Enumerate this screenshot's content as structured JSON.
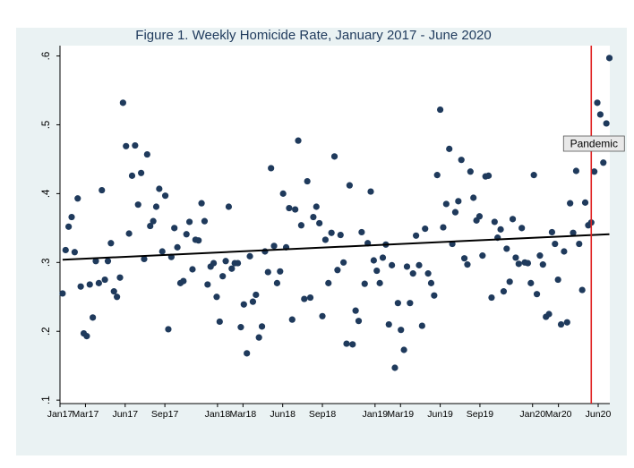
{
  "chart_data": {
    "type": "scatter",
    "title": "Figure 1. Weekly Homicide Rate, January 2017 - June 2020",
    "xlabel": "",
    "ylabel": "",
    "ylim": [
      0.1,
      0.6
    ],
    "yticks": [
      {
        "value": 0.1,
        "label": ".1"
      },
      {
        "value": 0.2,
        "label": ".2"
      },
      {
        "value": 0.3,
        "label": ".3"
      },
      {
        "value": 0.4,
        "label": ".4"
      },
      {
        "value": 0.5,
        "label": ".5"
      },
      {
        "value": 0.6,
        "label": ".6"
      }
    ],
    "xlim": [
      "2017-01-01",
      "2020-06-28"
    ],
    "xticks": [
      {
        "value": "2017-01",
        "label": "Jan17"
      },
      {
        "value": "2017-03",
        "label": "Mar17"
      },
      {
        "value": "2017-06",
        "label": "Jun17"
      },
      {
        "value": "2017-09",
        "label": "Sep17"
      },
      {
        "value": "2018-01",
        "label": "Jan18"
      },
      {
        "value": "2018-03",
        "label": "Mar18"
      },
      {
        "value": "2018-06",
        "label": "Jun18"
      },
      {
        "value": "2018-09",
        "label": "Sep18"
      },
      {
        "value": "2019-01",
        "label": "Jan19"
      },
      {
        "value": "2019-03",
        "label": "Mar19"
      },
      {
        "value": "2019-06",
        "label": "Jun19"
      },
      {
        "value": "2019-09",
        "label": "Sep19"
      },
      {
        "value": "2020-01",
        "label": "Jan20"
      },
      {
        "value": "2020-03",
        "label": "Mar20"
      },
      {
        "value": "2020-06",
        "label": "Jun20"
      }
    ],
    "series": [
      {
        "kind": "points",
        "marker_color": "#1f3a5c",
        "points": [
          {
            "x": "2017-01-07",
            "y": 0.255
          },
          {
            "x": "2017-01-14",
            "y": 0.318
          },
          {
            "x": "2017-01-21",
            "y": 0.352
          },
          {
            "x": "2017-01-28",
            "y": 0.366
          },
          {
            "x": "2017-02-04",
            "y": 0.315
          },
          {
            "x": "2017-02-11",
            "y": 0.393
          },
          {
            "x": "2017-02-18",
            "y": 0.265
          },
          {
            "x": "2017-02-25",
            "y": 0.197
          },
          {
            "x": "2017-03-04",
            "y": 0.193
          },
          {
            "x": "2017-03-11",
            "y": 0.268
          },
          {
            "x": "2017-03-18",
            "y": 0.22
          },
          {
            "x": "2017-03-25",
            "y": 0.302
          },
          {
            "x": "2017-04-01",
            "y": 0.27
          },
          {
            "x": "2017-04-08",
            "y": 0.405
          },
          {
            "x": "2017-04-15",
            "y": 0.275
          },
          {
            "x": "2017-04-22",
            "y": 0.302
          },
          {
            "x": "2017-04-29",
            "y": 0.328
          },
          {
            "x": "2017-05-06",
            "y": 0.258
          },
          {
            "x": "2017-05-13",
            "y": 0.25
          },
          {
            "x": "2017-05-20",
            "y": 0.278
          },
          {
            "x": "2017-05-27",
            "y": 0.532
          },
          {
            "x": "2017-06-03",
            "y": 0.469
          },
          {
            "x": "2017-06-10",
            "y": 0.342
          },
          {
            "x": "2017-06-17",
            "y": 0.426
          },
          {
            "x": "2017-06-24",
            "y": 0.47
          },
          {
            "x": "2017-07-01",
            "y": 0.384
          },
          {
            "x": "2017-07-08",
            "y": 0.43
          },
          {
            "x": "2017-07-15",
            "y": 0.305
          },
          {
            "x": "2017-07-22",
            "y": 0.457
          },
          {
            "x": "2017-07-29",
            "y": 0.353
          },
          {
            "x": "2017-08-05",
            "y": 0.36
          },
          {
            "x": "2017-08-12",
            "y": 0.381
          },
          {
            "x": "2017-08-19",
            "y": 0.407
          },
          {
            "x": "2017-08-26",
            "y": 0.316
          },
          {
            "x": "2017-09-02",
            "y": 0.397
          },
          {
            "x": "2017-09-09",
            "y": 0.203
          },
          {
            "x": "2017-09-16",
            "y": 0.308
          },
          {
            "x": "2017-09-23",
            "y": 0.35
          },
          {
            "x": "2017-09-30",
            "y": 0.322
          },
          {
            "x": "2017-10-07",
            "y": 0.27
          },
          {
            "x": "2017-10-14",
            "y": 0.273
          },
          {
            "x": "2017-10-21",
            "y": 0.341
          },
          {
            "x": "2017-10-28",
            "y": 0.359
          },
          {
            "x": "2017-11-04",
            "y": 0.29
          },
          {
            "x": "2017-11-11",
            "y": 0.333
          },
          {
            "x": "2017-11-18",
            "y": 0.332
          },
          {
            "x": "2017-11-25",
            "y": 0.386
          },
          {
            "x": "2017-12-02",
            "y": 0.36
          },
          {
            "x": "2017-12-09",
            "y": 0.268
          },
          {
            "x": "2017-12-16",
            "y": 0.294
          },
          {
            "x": "2017-12-23",
            "y": 0.299
          },
          {
            "x": "2017-12-30",
            "y": 0.25
          },
          {
            "x": "2018-01-06",
            "y": 0.214
          },
          {
            "x": "2018-01-13",
            "y": 0.28
          },
          {
            "x": "2018-01-20",
            "y": 0.302
          },
          {
            "x": "2018-01-27",
            "y": 0.381
          },
          {
            "x": "2018-02-03",
            "y": 0.291
          },
          {
            "x": "2018-02-10",
            "y": 0.299
          },
          {
            "x": "2018-02-17",
            "y": 0.299
          },
          {
            "x": "2018-02-24",
            "y": 0.206
          },
          {
            "x": "2018-03-03",
            "y": 0.239
          },
          {
            "x": "2018-03-10",
            "y": 0.168
          },
          {
            "x": "2018-03-17",
            "y": 0.309
          },
          {
            "x": "2018-03-24",
            "y": 0.243
          },
          {
            "x": "2018-03-31",
            "y": 0.253
          },
          {
            "x": "2018-04-07",
            "y": 0.191
          },
          {
            "x": "2018-04-14",
            "y": 0.207
          },
          {
            "x": "2018-04-21",
            "y": 0.316
          },
          {
            "x": "2018-04-28",
            "y": 0.286
          },
          {
            "x": "2018-05-05",
            "y": 0.437
          },
          {
            "x": "2018-05-12",
            "y": 0.324
          },
          {
            "x": "2018-05-19",
            "y": 0.27
          },
          {
            "x": "2018-05-26",
            "y": 0.287
          },
          {
            "x": "2018-06-02",
            "y": 0.4
          },
          {
            "x": "2018-06-09",
            "y": 0.322
          },
          {
            "x": "2018-06-16",
            "y": 0.379
          },
          {
            "x": "2018-06-23",
            "y": 0.217
          },
          {
            "x": "2018-06-30",
            "y": 0.377
          },
          {
            "x": "2018-07-07",
            "y": 0.477
          },
          {
            "x": "2018-07-14",
            "y": 0.354
          },
          {
            "x": "2018-07-21",
            "y": 0.247
          },
          {
            "x": "2018-07-28",
            "y": 0.418
          },
          {
            "x": "2018-08-04",
            "y": 0.249
          },
          {
            "x": "2018-08-11",
            "y": 0.366
          },
          {
            "x": "2018-08-18",
            "y": 0.381
          },
          {
            "x": "2018-08-25",
            "y": 0.357
          },
          {
            "x": "2018-09-01",
            "y": 0.222
          },
          {
            "x": "2018-09-08",
            "y": 0.333
          },
          {
            "x": "2018-09-15",
            "y": 0.27
          },
          {
            "x": "2018-09-22",
            "y": 0.343
          },
          {
            "x": "2018-09-29",
            "y": 0.454
          },
          {
            "x": "2018-10-06",
            "y": 0.289
          },
          {
            "x": "2018-10-13",
            "y": 0.34
          },
          {
            "x": "2018-10-20",
            "y": 0.3
          },
          {
            "x": "2018-10-27",
            "y": 0.182
          },
          {
            "x": "2018-11-03",
            "y": 0.412
          },
          {
            "x": "2018-11-10",
            "y": 0.181
          },
          {
            "x": "2018-11-17",
            "y": 0.23
          },
          {
            "x": "2018-11-24",
            "y": 0.215
          },
          {
            "x": "2018-12-01",
            "y": 0.344
          },
          {
            "x": "2018-12-08",
            "y": 0.269
          },
          {
            "x": "2018-12-15",
            "y": 0.328
          },
          {
            "x": "2018-12-22",
            "y": 0.403
          },
          {
            "x": "2018-12-29",
            "y": 0.303
          },
          {
            "x": "2019-01-05",
            "y": 0.288
          },
          {
            "x": "2019-01-12",
            "y": 0.27
          },
          {
            "x": "2019-01-19",
            "y": 0.307
          },
          {
            "x": "2019-01-26",
            "y": 0.326
          },
          {
            "x": "2019-02-02",
            "y": 0.21
          },
          {
            "x": "2019-02-09",
            "y": 0.296
          },
          {
            "x": "2019-02-16",
            "y": 0.147
          },
          {
            "x": "2019-02-23",
            "y": 0.241
          },
          {
            "x": "2019-03-02",
            "y": 0.202
          },
          {
            "x": "2019-03-09",
            "y": 0.173
          },
          {
            "x": "2019-03-16",
            "y": 0.294
          },
          {
            "x": "2019-03-23",
            "y": 0.241
          },
          {
            "x": "2019-03-30",
            "y": 0.284
          },
          {
            "x": "2019-04-06",
            "y": 0.339
          },
          {
            "x": "2019-04-13",
            "y": 0.296
          },
          {
            "x": "2019-04-20",
            "y": 0.208
          },
          {
            "x": "2019-04-27",
            "y": 0.349
          },
          {
            "x": "2019-05-04",
            "y": 0.284
          },
          {
            "x": "2019-05-11",
            "y": 0.27
          },
          {
            "x": "2019-05-18",
            "y": 0.252
          },
          {
            "x": "2019-05-25",
            "y": 0.427
          },
          {
            "x": "2019-06-01",
            "y": 0.522
          },
          {
            "x": "2019-06-08",
            "y": 0.351
          },
          {
            "x": "2019-06-15",
            "y": 0.385
          },
          {
            "x": "2019-06-22",
            "y": 0.465
          },
          {
            "x": "2019-06-29",
            "y": 0.327
          },
          {
            "x": "2019-07-06",
            "y": 0.373
          },
          {
            "x": "2019-07-13",
            "y": 0.389
          },
          {
            "x": "2019-07-20",
            "y": 0.449
          },
          {
            "x": "2019-07-27",
            "y": 0.306
          },
          {
            "x": "2019-08-03",
            "y": 0.297
          },
          {
            "x": "2019-08-10",
            "y": 0.432
          },
          {
            "x": "2019-08-17",
            "y": 0.394
          },
          {
            "x": "2019-08-24",
            "y": 0.361
          },
          {
            "x": "2019-08-31",
            "y": 0.367
          },
          {
            "x": "2019-09-07",
            "y": 0.31
          },
          {
            "x": "2019-09-14",
            "y": 0.425
          },
          {
            "x": "2019-09-21",
            "y": 0.426
          },
          {
            "x": "2019-09-28",
            "y": 0.249
          },
          {
            "x": "2019-10-05",
            "y": 0.359
          },
          {
            "x": "2019-10-12",
            "y": 0.336
          },
          {
            "x": "2019-10-19",
            "y": 0.348
          },
          {
            "x": "2019-10-26",
            "y": 0.258
          },
          {
            "x": "2019-11-02",
            "y": 0.32
          },
          {
            "x": "2019-11-09",
            "y": 0.272
          },
          {
            "x": "2019-11-16",
            "y": 0.363
          },
          {
            "x": "2019-11-23",
            "y": 0.307
          },
          {
            "x": "2019-11-30",
            "y": 0.298
          },
          {
            "x": "2019-12-07",
            "y": 0.35
          },
          {
            "x": "2019-12-14",
            "y": 0.3
          },
          {
            "x": "2019-12-21",
            "y": 0.299
          },
          {
            "x": "2019-12-28",
            "y": 0.27
          },
          {
            "x": "2020-01-04",
            "y": 0.427
          },
          {
            "x": "2020-01-11",
            "y": 0.254
          },
          {
            "x": "2020-01-18",
            "y": 0.31
          },
          {
            "x": "2020-01-25",
            "y": 0.297
          },
          {
            "x": "2020-02-01",
            "y": 0.221
          },
          {
            "x": "2020-02-08",
            "y": 0.225
          },
          {
            "x": "2020-02-15",
            "y": 0.344
          },
          {
            "x": "2020-02-22",
            "y": 0.327
          },
          {
            "x": "2020-02-29",
            "y": 0.275
          },
          {
            "x": "2020-03-07",
            "y": 0.21
          },
          {
            "x": "2020-03-14",
            "y": 0.316
          },
          {
            "x": "2020-03-21",
            "y": 0.213
          },
          {
            "x": "2020-03-28",
            "y": 0.386
          },
          {
            "x": "2020-04-04",
            "y": 0.343
          },
          {
            "x": "2020-04-11",
            "y": 0.433
          },
          {
            "x": "2020-04-18",
            "y": 0.327
          },
          {
            "x": "2020-04-25",
            "y": 0.26
          },
          {
            "x": "2020-05-02",
            "y": 0.387
          },
          {
            "x": "2020-05-09",
            "y": 0.354
          },
          {
            "x": "2020-05-16",
            "y": 0.358
          },
          {
            "x": "2020-05-23",
            "y": 0.432
          },
          {
            "x": "2020-05-30",
            "y": 0.532
          },
          {
            "x": "2020-06-06",
            "y": 0.515
          },
          {
            "x": "2020-06-13",
            "y": 0.445
          },
          {
            "x": "2020-06-20",
            "y": 0.502
          },
          {
            "x": "2020-06-27",
            "y": 0.597
          }
        ]
      },
      {
        "kind": "trend_line",
        "line_color": "#000000",
        "points": [
          {
            "x": "2017-01-07",
            "y": 0.304
          },
          {
            "x": "2020-06-27",
            "y": 0.341
          }
        ]
      }
    ],
    "annotations": [
      {
        "type": "vline",
        "x": "2020-05-16",
        "color": "#e02020",
        "label": "Pandemic"
      }
    ],
    "grid": false,
    "legend": "none"
  }
}
